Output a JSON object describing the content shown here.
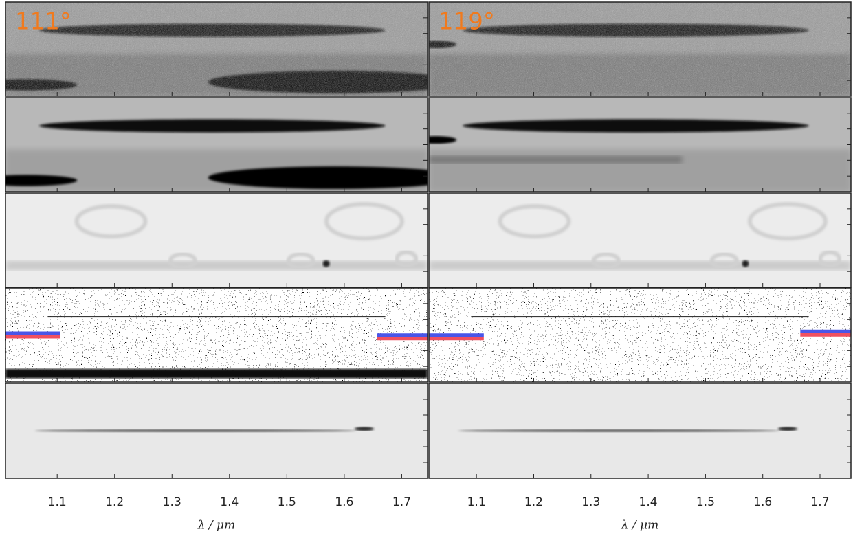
{
  "chart_data": [
    {
      "type": "image",
      "annotation": "111°",
      "xlabel": "λ / μm",
      "xlim": [
        1.01,
        1.745
      ],
      "xticks": [
        1.1,
        1.2,
        1.3,
        1.4,
        1.5,
        1.6,
        1.7
      ]
    },
    {
      "type": "image",
      "annotation": "119°",
      "xlabel": "λ / μm",
      "xlim": [
        1.017,
        1.754
      ],
      "xticks": [
        1.1,
        1.2,
        1.3,
        1.4,
        1.5,
        1.6,
        1.7
      ]
    }
  ]
}
